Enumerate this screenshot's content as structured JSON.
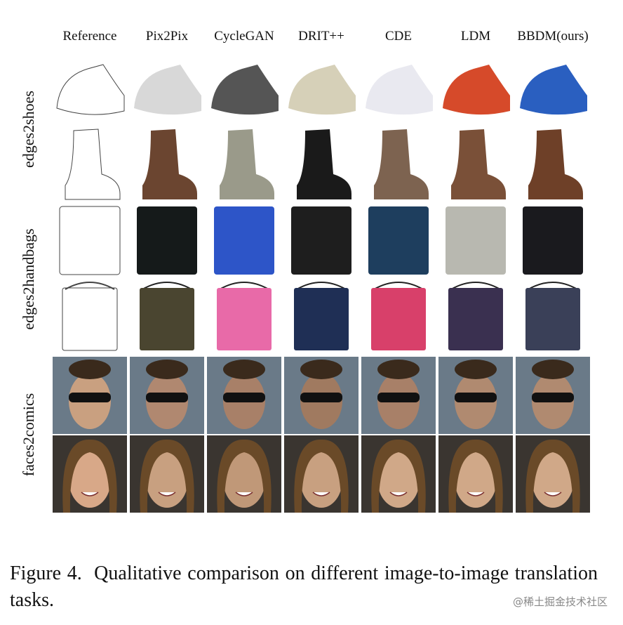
{
  "figure": {
    "columns": [
      "Reference",
      "Pix2Pix",
      "CycleGAN",
      "DRIT++",
      "CDE",
      "LDM",
      "BBDM(ours)"
    ],
    "row_groups": [
      "edges2shoes",
      "edges2handbags",
      "faces2comics"
    ],
    "caption": "Figure 4.  Qualitative comparison on different image-to-image translation tasks.",
    "watermark": "@稀土掘金技术社区"
  }
}
